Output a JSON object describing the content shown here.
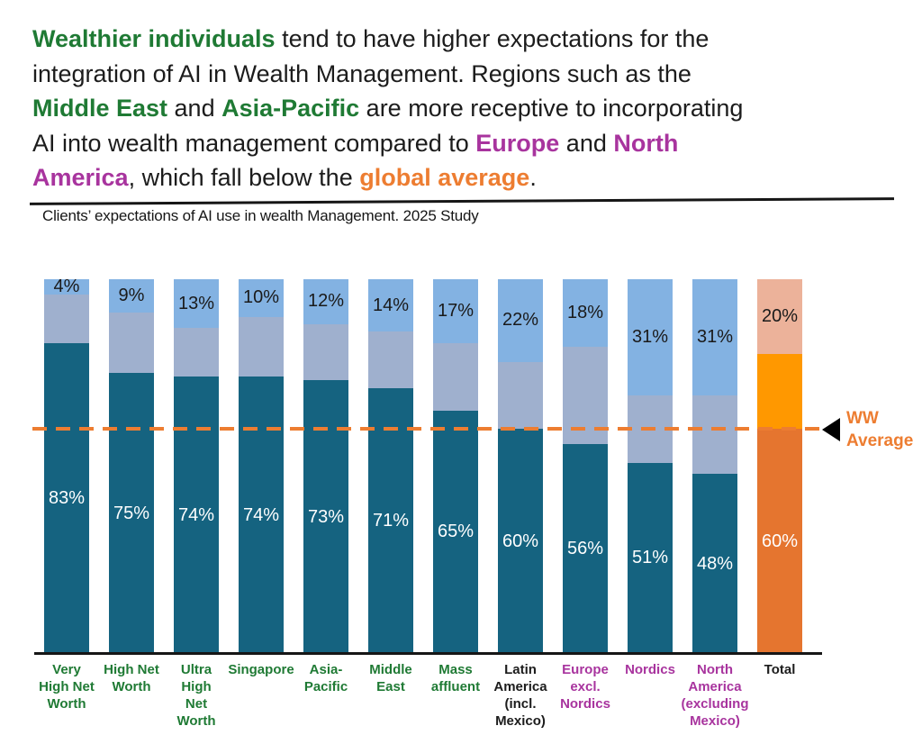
{
  "colors": {
    "green": "#1F7A34",
    "purple": "#A8349E",
    "orange": "#ED7D31",
    "text": "#1c1c1c",
    "white": "#ffffff"
  },
  "header": {
    "segments": [
      {
        "t": "Wealthier individuals",
        "c": "green",
        "b": true
      },
      {
        "t": " tend to have higher expectations for the\nintegration of AI in Wealth Management. Regions such as the\n",
        "c": "text",
        "b": false
      },
      {
        "t": "Middle East",
        "c": "green",
        "b": true
      },
      {
        "t": " and ",
        "c": "text",
        "b": false
      },
      {
        "t": "Asia-Pacific",
        "c": "green",
        "b": true
      },
      {
        "t": " are more receptive to incorporating\nAI into wealth management compared to ",
        "c": "text",
        "b": false
      },
      {
        "t": "Europe",
        "c": "purple",
        "b": true
      },
      {
        "t": " and ",
        "c": "text",
        "b": false
      },
      {
        "t": "North\nAmerica",
        "c": "purple",
        "b": true
      },
      {
        "t": ", which fall below the ",
        "c": "text",
        "b": false
      },
      {
        "t": "global average",
        "c": "orange",
        "b": true
      },
      {
        "t": ".",
        "c": "text",
        "b": false
      }
    ]
  },
  "subtitle": "Clients’ expectations of AI use in wealth Management. 2025 Study",
  "ww_average": {
    "line1": "WW",
    "line2": "Average"
  },
  "chart_data": {
    "type": "bar",
    "stacked": true,
    "units": "%",
    "title": "Clients’ expectations of AI use in wealth Management. 2025 Study",
    "ylim": [
      0,
      100
    ],
    "grid": false,
    "reference_line": {
      "label": "WW Average",
      "value": 60,
      "style": "orange-dashed"
    },
    "categories": [
      {
        "label": "Very High Net Worth",
        "lines": [
          "Very",
          "High Net",
          "Worth"
        ],
        "label_color": "green",
        "theme": "blue"
      },
      {
        "label": "High Net Worth",
        "lines": [
          "High Net",
          "Worth"
        ],
        "label_color": "green",
        "theme": "blue"
      },
      {
        "label": "Ultra High Net Worth",
        "lines": [
          "Ultra",
          "High",
          "Net",
          "Worth"
        ],
        "label_color": "green",
        "theme": "blue"
      },
      {
        "label": "Singapore",
        "lines": [
          "Singapore"
        ],
        "label_color": "green",
        "theme": "blue"
      },
      {
        "label": "Asia-Pacific",
        "lines": [
          "Asia-",
          "Pacific"
        ],
        "label_color": "green",
        "theme": "blue"
      },
      {
        "label": "Middle East",
        "lines": [
          "Middle",
          "East"
        ],
        "label_color": "green",
        "theme": "blue"
      },
      {
        "label": "Mass affluent",
        "lines": [
          "Mass",
          "affluent"
        ],
        "label_color": "green",
        "theme": "blue"
      },
      {
        "label": "Latin America (incl. Mexico)",
        "lines": [
          "Latin",
          "America",
          "(incl.",
          "Mexico)"
        ],
        "label_color": "text",
        "theme": "blue"
      },
      {
        "label": "Europe excl. Nordics",
        "lines": [
          "Europe",
          "excl.",
          "Nordics"
        ],
        "label_color": "purple",
        "theme": "blue"
      },
      {
        "label": "Nordics",
        "lines": [
          "Nordics"
        ],
        "label_color": "purple",
        "theme": "blue"
      },
      {
        "label": "North America (excluding Mexico)",
        "lines": [
          "North",
          "America",
          "(excluding",
          "Mexico)"
        ],
        "label_color": "purple",
        "theme": "blue"
      },
      {
        "label": "Total",
        "lines": [
          "Total"
        ],
        "label_color": "text",
        "theme": "orange"
      }
    ],
    "series": [
      {
        "name": "bottom",
        "labeled": true,
        "values": [
          83,
          75,
          74,
          74,
          73,
          71,
          65,
          60,
          56,
          51,
          48,
          60
        ]
      },
      {
        "name": "middle",
        "labeled": false,
        "values": [
          13,
          16,
          13,
          16,
          15,
          15,
          18,
          18,
          26,
          18,
          21,
          20
        ]
      },
      {
        "name": "top",
        "labeled": true,
        "values": [
          4,
          9,
          13,
          10,
          12,
          14,
          17,
          22,
          18,
          31,
          31,
          20
        ]
      }
    ],
    "bar_colors": {
      "blue": {
        "bottom": "#156380",
        "middle": "#9FB0CE",
        "top": "#83B2E2"
      },
      "orange": {
        "bottom": "#E5752F",
        "middle": "#FF9800",
        "top": "#ECB29A"
      }
    }
  }
}
